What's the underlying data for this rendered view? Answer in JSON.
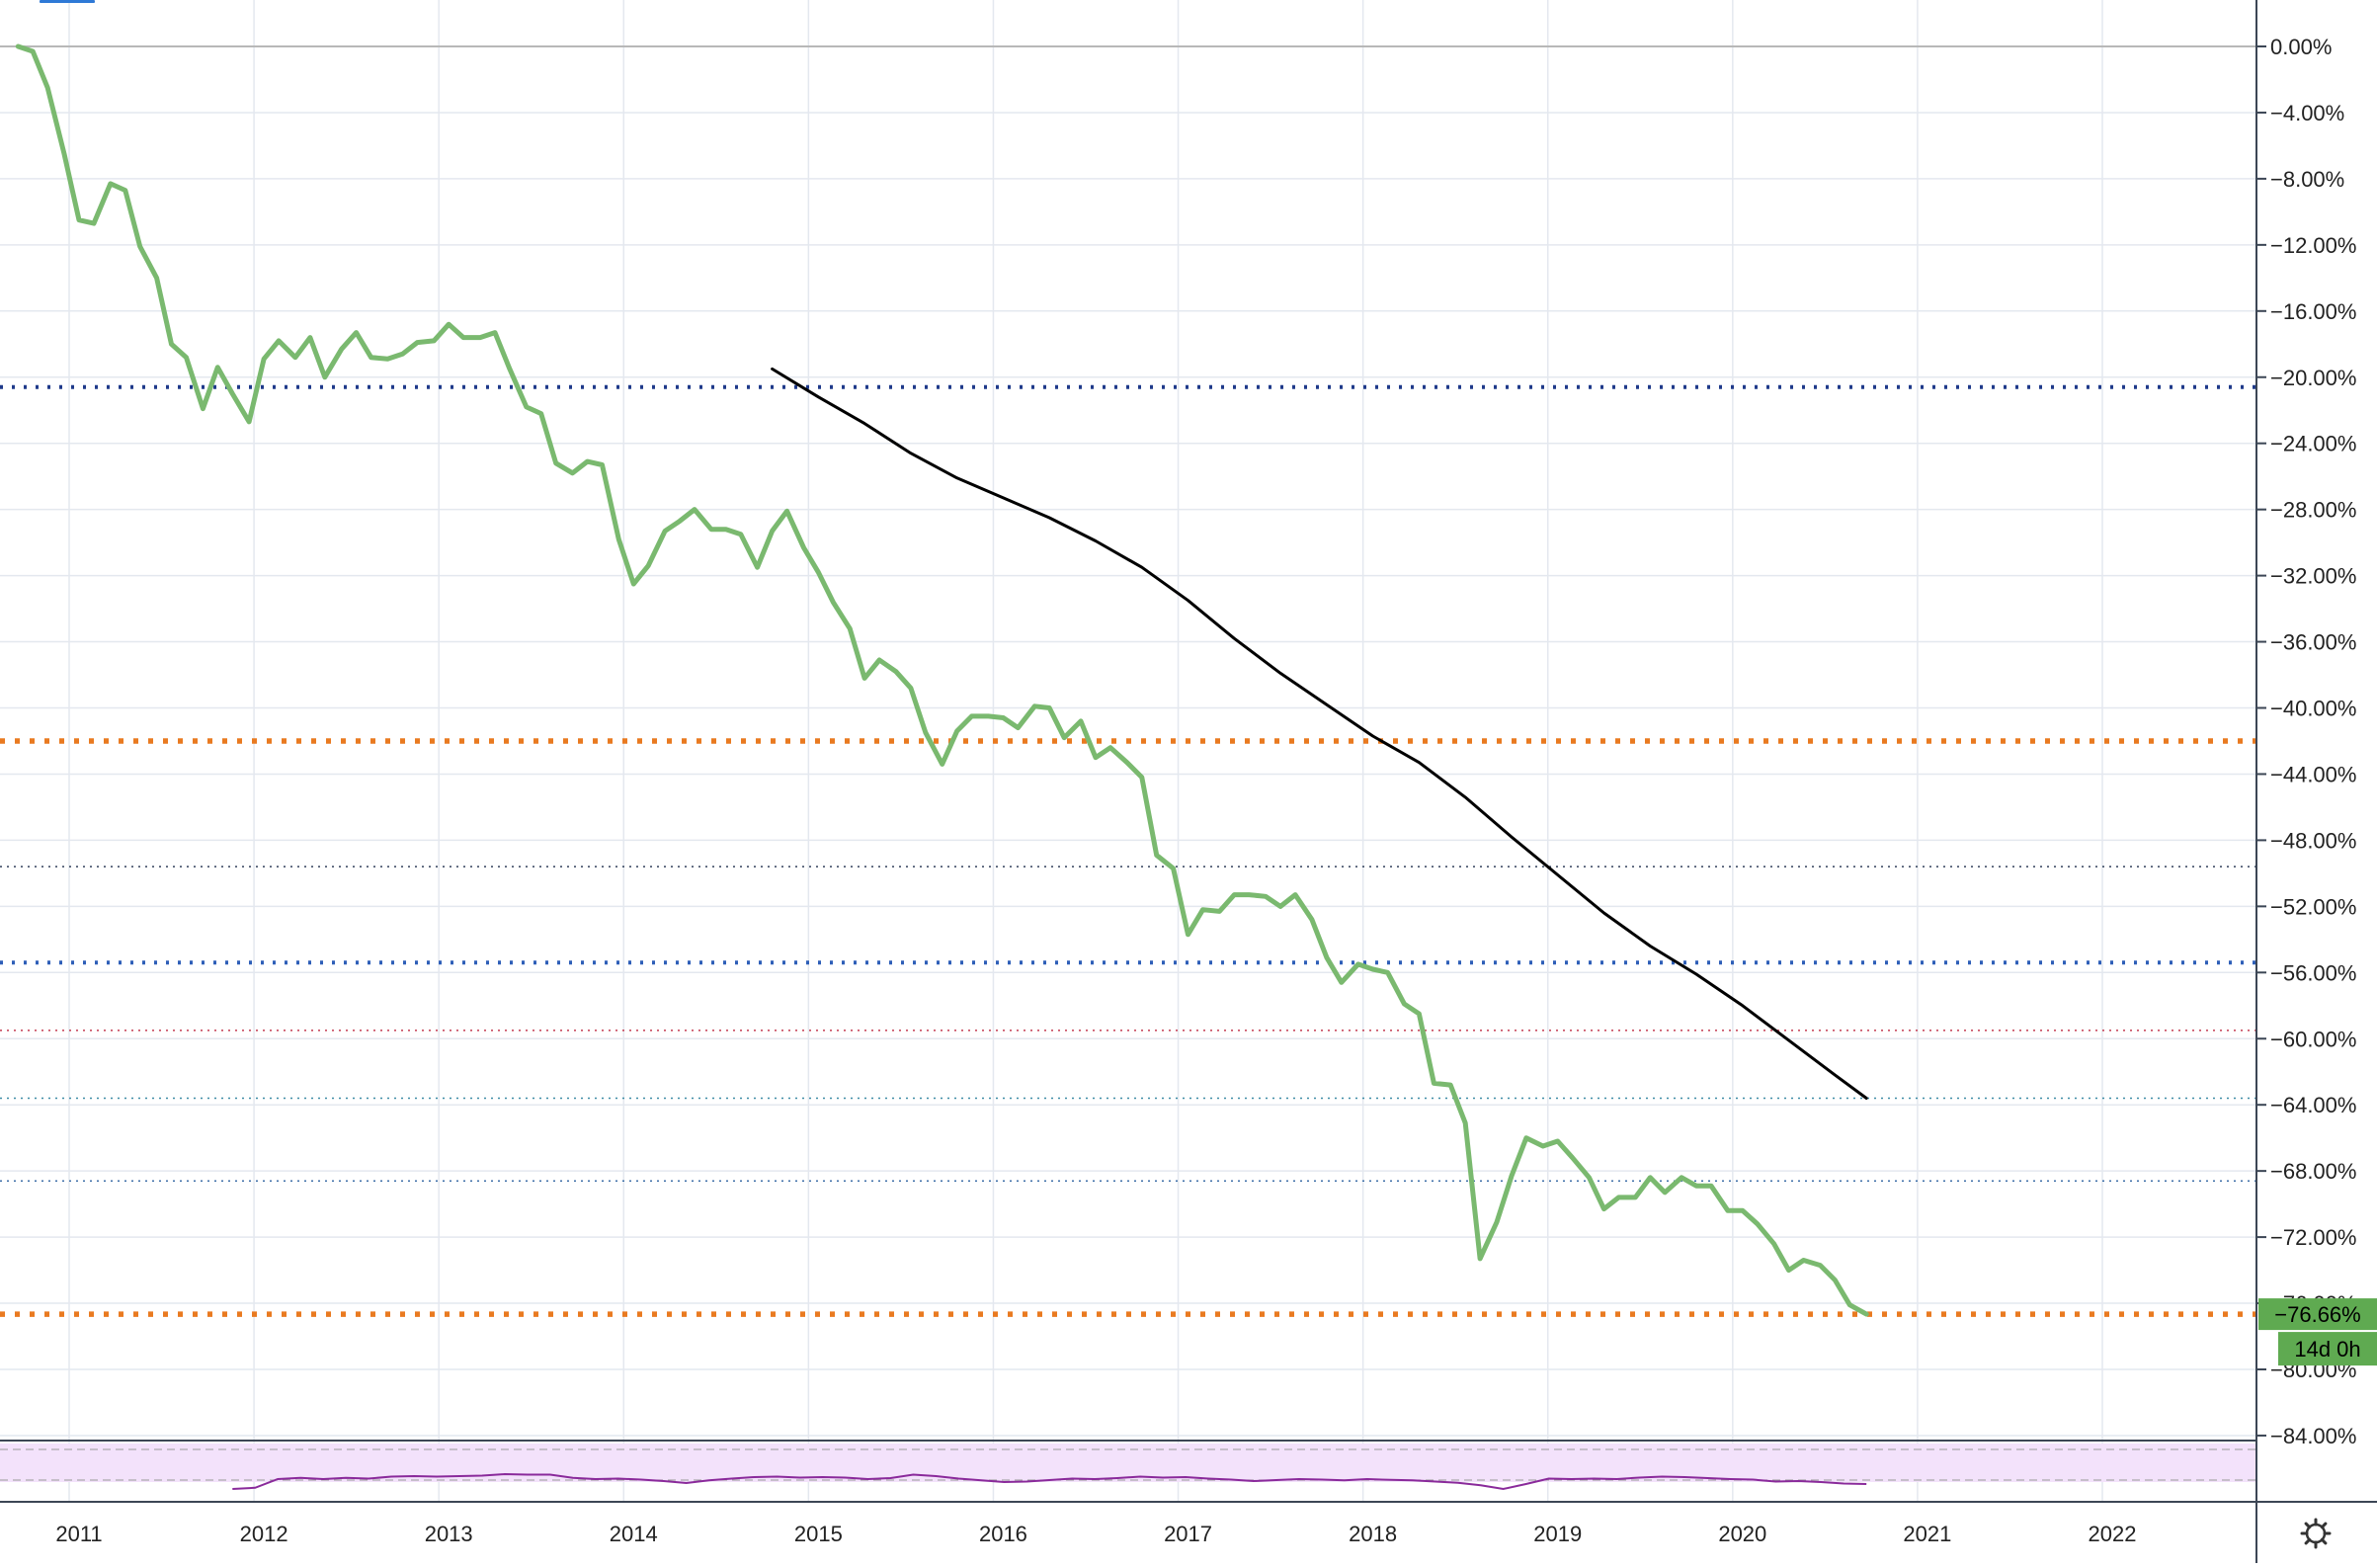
{
  "colors": {
    "price_line": "#7ab96f",
    "trend_line": "#000000",
    "grid": "#e4e8ef",
    "axis_text": "#222222",
    "badge_price_bg": "#5faa51",
    "badge_text": "#000000",
    "navy_level": "#1f3a8a",
    "orange_level": "#e97a20",
    "blue_level": "#2e5fb8",
    "dark_level": "#33425c",
    "red_level": "#c43c52",
    "teal_level": "#3d8ca6",
    "steel_level": "#3e6fa8",
    "indicator_line": "#8a2a9b",
    "indicator_band": "#f3e2fb",
    "settings_icon": "#333333"
  },
  "chart_data": {
    "type": "line",
    "title": "",
    "xlabel": "",
    "ylabel": "",
    "x_tick_labels": [
      "2011",
      "2012",
      "2013",
      "2014",
      "2015",
      "2016",
      "2017",
      "2018",
      "2019",
      "2020",
      "2021",
      "2022"
    ],
    "y_tick_values": [
      0,
      -4,
      -8,
      -12,
      -16,
      -20,
      -24,
      -28,
      -32,
      -36,
      -40,
      -44,
      -48,
      -52,
      -56,
      -60,
      -64,
      -68,
      -72,
      -76,
      -80,
      -84
    ],
    "y_tick_labels": [
      "0.00%",
      "−4.00%",
      "−8.00%",
      "−12.00%",
      "−16.00%",
      "−20.00%",
      "−24.00%",
      "−28.00%",
      "−32.00%",
      "−36.00%",
      "−40.00%",
      "−44.00%",
      "−48.00%",
      "−52.00%",
      "−56.00%",
      "−60.00%",
      "−64.00%",
      "−68.00%",
      "−72.00%",
      "−76.00%",
      "−80.00%",
      "−84.00%"
    ],
    "x_range": [
      2010.6,
      2022.8
    ],
    "y_range": [
      2.8,
      -84.3
    ],
    "grid": true,
    "series": [
      {
        "style": "price",
        "x": [
          2010.67,
          2010.75,
          2010.83,
          2010.92,
          2011.0,
          2011.08,
          2011.17,
          2011.25,
          2011.33,
          2011.42,
          2011.5,
          2011.58,
          2011.67,
          2011.75,
          2011.83,
          2011.92,
          2012.0,
          2012.08,
          2012.17,
          2012.25,
          2012.33,
          2012.42,
          2012.5,
          2012.58,
          2012.67,
          2012.75,
          2012.83,
          2012.92,
          2013.0,
          2013.08,
          2013.17,
          2013.25,
          2013.33,
          2013.42,
          2013.5,
          2013.58,
          2013.67,
          2013.75,
          2013.83,
          2013.92,
          2014.0,
          2014.08,
          2014.17,
          2014.25,
          2014.33,
          2014.42,
          2014.5,
          2014.58,
          2014.67,
          2014.75,
          2014.83,
          2014.92,
          2015.0,
          2015.08,
          2015.17,
          2015.25,
          2015.33,
          2015.42,
          2015.5,
          2015.58,
          2015.67,
          2015.75,
          2015.83,
          2015.92,
          2016.0,
          2016.08,
          2016.17,
          2016.25,
          2016.33,
          2016.42,
          2016.5,
          2016.58,
          2016.67,
          2016.75,
          2016.83,
          2016.92,
          2017.0,
          2017.08,
          2017.17,
          2017.25,
          2017.33,
          2017.42,
          2017.5,
          2017.58,
          2017.67,
          2017.75,
          2017.83,
          2017.92,
          2018.0,
          2018.08,
          2018.17,
          2018.25,
          2018.33,
          2018.42,
          2018.5,
          2018.58,
          2018.67,
          2018.75,
          2018.83,
          2018.92,
          2019.0,
          2019.08,
          2019.17,
          2019.25,
          2019.33,
          2019.42,
          2019.5,
          2019.58,
          2019.67,
          2019.75,
          2019.83,
          2019.92,
          2020.0,
          2020.08,
          2020.17,
          2020.25,
          2020.33,
          2020.42,
          2020.5,
          2020.58,
          2020.67
        ],
        "y": [
          0.0,
          -0.3,
          -2.5,
          -6.5,
          -10.5,
          -10.7,
          -8.3,
          -8.7,
          -12.1,
          -14.0,
          -18.0,
          -18.8,
          -21.9,
          -19.4,
          -21.0,
          -22.7,
          -18.9,
          -17.8,
          -18.8,
          -17.6,
          -20.0,
          -18.3,
          -17.3,
          -18.8,
          -18.9,
          -18.6,
          -17.9,
          -17.8,
          -16.8,
          -17.6,
          -17.6,
          -17.3,
          -19.5,
          -21.8,
          -22.2,
          -25.2,
          -25.8,
          -25.1,
          -25.3,
          -29.8,
          -32.5,
          -31.4,
          -29.3,
          -28.7,
          -28.0,
          -29.2,
          -29.2,
          -29.5,
          -31.5,
          -29.3,
          -28.1,
          -30.3,
          -31.8,
          -33.6,
          -35.2,
          -38.2,
          -37.1,
          -37.8,
          -38.8,
          -41.5,
          -43.4,
          -41.4,
          -40.5,
          -40.5,
          -40.6,
          -41.2,
          -39.9,
          -40.0,
          -41.8,
          -40.8,
          -43.0,
          -42.4,
          -43.3,
          -44.2,
          -48.9,
          -49.7,
          -53.7,
          -52.2,
          -52.3,
          -51.3,
          -51.3,
          -51.4,
          -52.0,
          -51.3,
          -52.8,
          -55.1,
          -56.6,
          -55.5,
          -55.8,
          -56.0,
          -57.9,
          -58.5,
          -62.7,
          -62.8,
          -65.1,
          -73.3,
          -71.1,
          -68.3,
          -66.0,
          -66.5,
          -66.2,
          -67.2,
          -68.4,
          -70.3,
          -69.6,
          -69.6,
          -68.4,
          -69.3,
          -68.4,
          -68.9,
          -68.9,
          -70.4,
          -70.4,
          -71.2,
          -72.4,
          -74.0,
          -73.4,
          -73.7,
          -74.6,
          -76.1,
          -76.66
        ]
      },
      {
        "style": "trend",
        "x": [
          2014.75,
          2015.0,
          2015.25,
          2015.5,
          2015.75,
          2016.0,
          2016.25,
          2016.5,
          2016.75,
          2017.0,
          2017.25,
          2017.5,
          2017.75,
          2018.0,
          2018.25,
          2018.5,
          2018.75,
          2019.0,
          2019.25,
          2019.5,
          2019.75,
          2020.0,
          2020.25,
          2020.5,
          2020.67
        ],
        "y": [
          -19.5,
          -21.2,
          -22.8,
          -24.6,
          -26.1,
          -27.3,
          -28.5,
          -29.9,
          -31.5,
          -33.5,
          -35.8,
          -37.9,
          -39.8,
          -41.7,
          -43.3,
          -45.4,
          -47.8,
          -50.1,
          -52.4,
          -54.4,
          -56.1,
          -58.0,
          -60.1,
          -62.2,
          -63.6
        ]
      }
    ],
    "horizontal_levels": [
      {
        "y": -20.6,
        "style": "navy-dotted"
      },
      {
        "y": -42.0,
        "style": "orange-dotted"
      },
      {
        "y": -49.6,
        "style": "dark-dotted"
      },
      {
        "y": -55.4,
        "style": "blue-dotted"
      },
      {
        "y": -59.5,
        "style": "red-dotted"
      },
      {
        "y": -63.6,
        "style": "teal-dotted"
      },
      {
        "y": -68.6,
        "style": "steel-dotted"
      },
      {
        "y": -76.66,
        "style": "orange-dotted"
      }
    ],
    "last_value_label": "−76.66%",
    "countdown_label": "14d 0h",
    "indicator": {
      "x_start": 2011.83,
      "x_end": 2020.67,
      "values": [
        0.2,
        0.25,
        0.6,
        0.65,
        0.6,
        0.65,
        0.62,
        0.7,
        0.72,
        0.7,
        0.72,
        0.74,
        0.8,
        0.78,
        0.78,
        0.65,
        0.6,
        0.62,
        0.58,
        0.52,
        0.44,
        0.55,
        0.62,
        0.68,
        0.7,
        0.66,
        0.68,
        0.66,
        0.6,
        0.64,
        0.78,
        0.72,
        0.62,
        0.55,
        0.48,
        0.5,
        0.56,
        0.62,
        0.6,
        0.64,
        0.7,
        0.66,
        0.68,
        0.62,
        0.58,
        0.52,
        0.56,
        0.6,
        0.58,
        0.55,
        0.6,
        0.57,
        0.55,
        0.5,
        0.45,
        0.35,
        0.2,
        0.4,
        0.62,
        0.6,
        0.62,
        0.6,
        0.66,
        0.7,
        0.68,
        0.64,
        0.6,
        0.58,
        0.5,
        0.52,
        0.48,
        0.42,
        0.4
      ]
    }
  }
}
